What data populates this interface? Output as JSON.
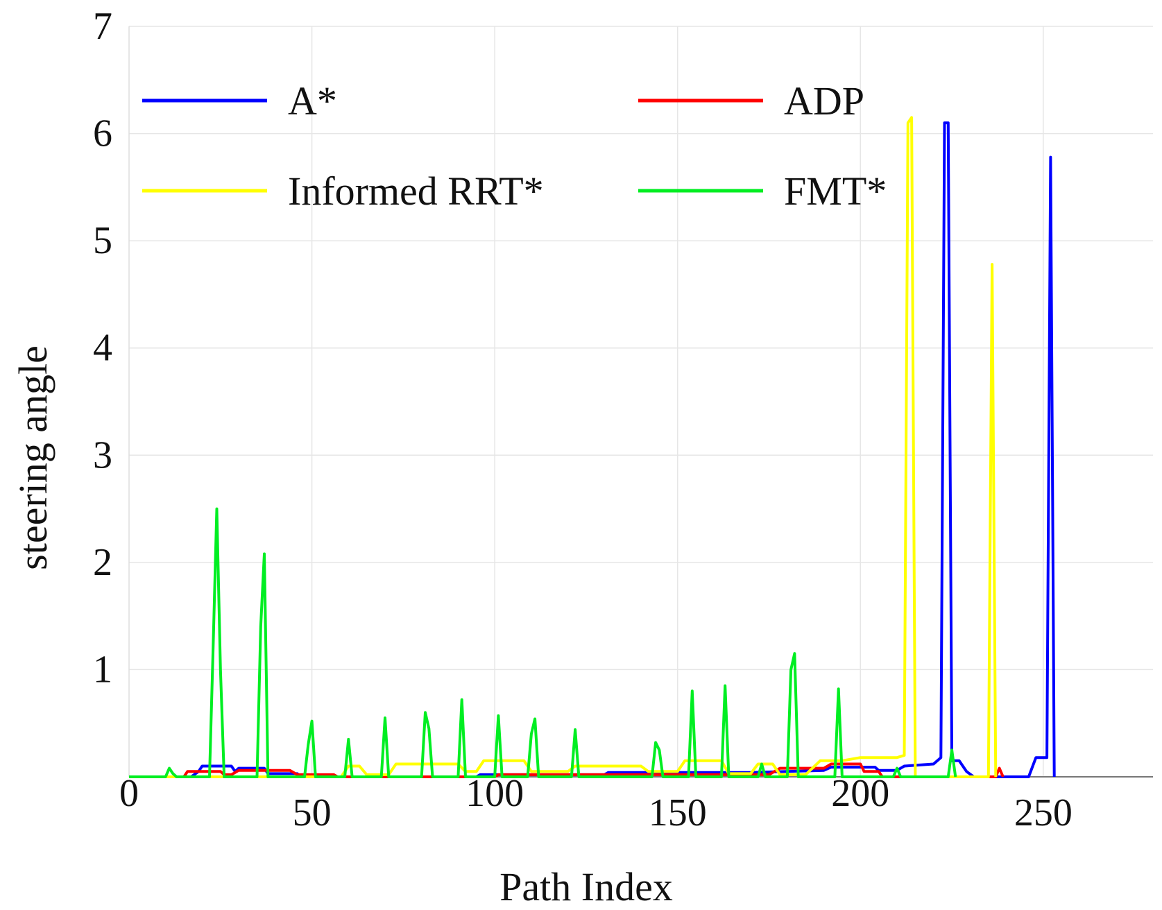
{
  "chart_data": {
    "type": "line",
    "title": "",
    "xlabel": "Path Index",
    "ylabel": "steering angle",
    "xlim": [
      0,
      280
    ],
    "ylim": [
      0,
      7
    ],
    "grid": true,
    "legend_placement": "top",
    "x_ticks": [
      0,
      50,
      100,
      150,
      200,
      250
    ],
    "y_ticks": [
      1,
      2,
      3,
      4,
      5,
      6,
      7
    ],
    "x_tick_labels": [
      "0",
      "50",
      "100",
      "150",
      "200",
      "250"
    ],
    "y_tick_labels": [
      "1",
      "2",
      "3",
      "4",
      "5",
      "6",
      "7"
    ],
    "series": [
      {
        "name": "A*",
        "color": "#0000ff",
        "points": [
          [
            0,
            0
          ],
          [
            17,
            0
          ],
          [
            19,
            0.05
          ],
          [
            20,
            0.1
          ],
          [
            28,
            0.1
          ],
          [
            29,
            0.05
          ],
          [
            30,
            0.08
          ],
          [
            37,
            0.08
          ],
          [
            38,
            0.03
          ],
          [
            46,
            0.03
          ],
          [
            47,
            0
          ],
          [
            95,
            0
          ],
          [
            96,
            0.02
          ],
          [
            130,
            0.02
          ],
          [
            131,
            0.04
          ],
          [
            170,
            0.04
          ],
          [
            180,
            0.05
          ],
          [
            190,
            0.06
          ],
          [
            192,
            0.09
          ],
          [
            204,
            0.09
          ],
          [
            205,
            0.06
          ],
          [
            210,
            0.06
          ],
          [
            212,
            0.1
          ],
          [
            220,
            0.12
          ],
          [
            222,
            0.18
          ],
          [
            223,
            6.1
          ],
          [
            224,
            6.1
          ],
          [
            225,
            0.15
          ],
          [
            227,
            0.15
          ],
          [
            229,
            0.05
          ],
          [
            231,
            0
          ],
          [
            246,
            0
          ],
          [
            248,
            0.18
          ],
          [
            251,
            0.18
          ],
          [
            252,
            5.78
          ],
          [
            253,
            0
          ]
        ]
      },
      {
        "name": "ADP",
        "color": "#ff0000",
        "points": [
          [
            0,
            0
          ],
          [
            15,
            0
          ],
          [
            16,
            0.05
          ],
          [
            25,
            0.05
          ],
          [
            26,
            0.02
          ],
          [
            28,
            0.02
          ],
          [
            30,
            0.06
          ],
          [
            44,
            0.06
          ],
          [
            46,
            0.02
          ],
          [
            56,
            0.02
          ],
          [
            57,
            0
          ],
          [
            100,
            0
          ],
          [
            101,
            0.02
          ],
          [
            150,
            0.02
          ],
          [
            175,
            0.02
          ],
          [
            178,
            0.08
          ],
          [
            190,
            0.08
          ],
          [
            192,
            0.12
          ],
          [
            200,
            0.12
          ],
          [
            201,
            0.05
          ],
          [
            205,
            0.05
          ],
          [
            206,
            0
          ],
          [
            237,
            0
          ],
          [
            238,
            0.08
          ],
          [
            239,
            0
          ]
        ]
      },
      {
        "name": "Informed RRT*",
        "color": "#ffff00",
        "points": [
          [
            0,
            0
          ],
          [
            58,
            0
          ],
          [
            60,
            0.1
          ],
          [
            63,
            0.1
          ],
          [
            65,
            0.02
          ],
          [
            71,
            0.02
          ],
          [
            73,
            0.12
          ],
          [
            90,
            0.12
          ],
          [
            92,
            0.05
          ],
          [
            95,
            0.05
          ],
          [
            97,
            0.15
          ],
          [
            108,
            0.15
          ],
          [
            110,
            0.05
          ],
          [
            120,
            0.05
          ],
          [
            122,
            0.1
          ],
          [
            140,
            0.1
          ],
          [
            142,
            0.05
          ],
          [
            150,
            0.05
          ],
          [
            152,
            0.15
          ],
          [
            162,
            0.15
          ],
          [
            164,
            0.03
          ],
          [
            170,
            0.03
          ],
          [
            172,
            0.12
          ],
          [
            176,
            0.12
          ],
          [
            178,
            0.02
          ],
          [
            185,
            0.02
          ],
          [
            189,
            0.15
          ],
          [
            195,
            0.15
          ],
          [
            200,
            0.18
          ],
          [
            210,
            0.18
          ],
          [
            212,
            0.2
          ],
          [
            213,
            6.1
          ],
          [
            214,
            6.15
          ],
          [
            215,
            0
          ],
          [
            235,
            0
          ],
          [
            236,
            4.78
          ],
          [
            237,
            0
          ]
        ]
      },
      {
        "name": "FMT*",
        "color": "#00ee22",
        "points": [
          [
            0,
            0
          ],
          [
            10,
            0
          ],
          [
            11,
            0.08
          ],
          [
            12,
            0.03
          ],
          [
            13,
            0
          ],
          [
            22,
            0
          ],
          [
            23,
            1.2
          ],
          [
            24,
            2.5
          ],
          [
            25,
            1.0
          ],
          [
            26,
            0
          ],
          [
            35,
            0
          ],
          [
            36,
            1.4
          ],
          [
            37,
            2.08
          ],
          [
            38,
            0
          ],
          [
            48,
            0
          ],
          [
            49,
            0.3
          ],
          [
            50,
            0.52
          ],
          [
            51,
            0
          ],
          [
            59,
            0
          ],
          [
            60,
            0.35
          ],
          [
            61,
            0
          ],
          [
            69,
            0
          ],
          [
            70,
            0.55
          ],
          [
            71,
            0
          ],
          [
            80,
            0
          ],
          [
            81,
            0.6
          ],
          [
            82,
            0.45
          ],
          [
            83,
            0
          ],
          [
            90,
            0
          ],
          [
            91,
            0.72
          ],
          [
            92,
            0
          ],
          [
            100,
            0
          ],
          [
            101,
            0.57
          ],
          [
            102,
            0
          ],
          [
            109,
            0
          ],
          [
            110,
            0.4
          ],
          [
            111,
            0.54
          ],
          [
            112,
            0
          ],
          [
            121,
            0
          ],
          [
            122,
            0.44
          ],
          [
            123,
            0
          ],
          [
            143,
            0
          ],
          [
            144,
            0.32
          ],
          [
            145,
            0.25
          ],
          [
            146,
            0
          ],
          [
            153,
            0
          ],
          [
            154,
            0.8
          ],
          [
            155,
            0
          ],
          [
            162,
            0
          ],
          [
            163,
            0.85
          ],
          [
            164,
            0
          ],
          [
            172,
            0
          ],
          [
            173,
            0.12
          ],
          [
            174,
            0
          ],
          [
            180,
            0
          ],
          [
            181,
            1.0
          ],
          [
            182,
            1.15
          ],
          [
            183,
            0
          ],
          [
            193,
            0
          ],
          [
            194,
            0.82
          ],
          [
            195,
            0
          ],
          [
            209,
            0
          ],
          [
            210,
            0.08
          ],
          [
            211,
            0
          ],
          [
            224,
            0
          ],
          [
            225,
            0.25
          ],
          [
            226,
            0
          ]
        ]
      }
    ]
  }
}
